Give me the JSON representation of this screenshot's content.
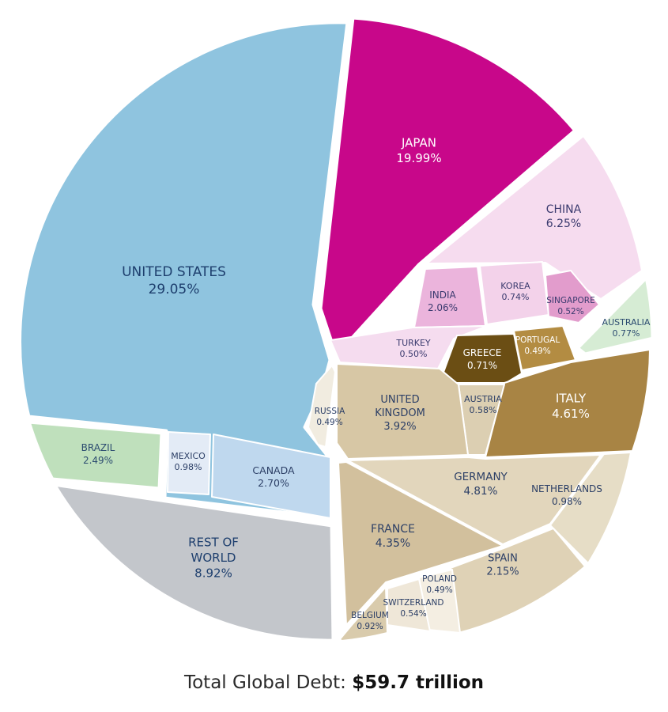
{
  "chart_data": {
    "type": "voronoi-treemap",
    "unit": "%",
    "footer": {
      "label": "Total Global Debt:",
      "value": "$59.7 trillion"
    },
    "cells": [
      {
        "name": "UNITED STATES",
        "value": "29.05%",
        "color": "#8fc4df",
        "label_color": "#1e3f6e"
      },
      {
        "name": "JAPAN",
        "value": "19.99%",
        "color": "#c8078a",
        "label_color": "#ffffff"
      },
      {
        "name": "CHINA",
        "value": "6.25%",
        "color": "#f6dcef",
        "label_color": "#3a3a6e"
      },
      {
        "name": "INDIA",
        "value": "2.06%",
        "color": "#ebb4dc",
        "label_color": "#3a3a6e"
      },
      {
        "name": "KOREA",
        "value": "0.74%",
        "color": "#f3d2ea",
        "label_color": "#3a3a6e"
      },
      {
        "name": "SINGAPORE",
        "value": "0.52%",
        "color": "#e29ccc",
        "label_color": "#3a3a6e"
      },
      {
        "name": "TURKEY",
        "value": "0.50%",
        "color": "#f5dcef",
        "label_color": "#3a3a6e"
      },
      {
        "name": "AUSTRALIA",
        "value": "0.77%",
        "color": "#d6ecd4",
        "label_color": "#2c4c70"
      },
      {
        "name": "GREECE",
        "value": "0.71%",
        "color": "#6b4e14",
        "label_color": "#ffffff"
      },
      {
        "name": "PORTUGAL",
        "value": "0.49%",
        "color": "#b38c42",
        "label_color": "#ffffff"
      },
      {
        "name": "ITALY",
        "value": "4.61%",
        "color": "#a88444",
        "label_color": "#ffffff"
      },
      {
        "name": "AUSTRIA",
        "value": "0.58%",
        "color": "#dccfb2",
        "label_color": "#2c3f66"
      },
      {
        "name": "RUSSIA",
        "value": "0.49%",
        "color": "#f1ece0",
        "label_color": "#2c3f66"
      },
      {
        "name": "UNITED KINGDOM",
        "value": "3.92%",
        "color": "#d7c7a5",
        "label_color": "#2c3f66"
      },
      {
        "name": "GERMANY",
        "value": "4.81%",
        "color": "#e2d6bc",
        "label_color": "#2c3f66"
      },
      {
        "name": "NETHERLANDS",
        "value": "0.98%",
        "color": "#e6ddc6",
        "label_color": "#2c3f66"
      },
      {
        "name": "FRANCE",
        "value": "4.35%",
        "color": "#d2c09d",
        "label_color": "#2c3f66"
      },
      {
        "name": "SPAIN",
        "value": "2.15%",
        "color": "#dfd2b6",
        "label_color": "#2c3f66"
      },
      {
        "name": "POLAND",
        "value": "0.49%",
        "color": "#f4eee2",
        "label_color": "#2c3f66"
      },
      {
        "name": "SWITZERLAND",
        "value": "0.54%",
        "color": "#efe7d8",
        "label_color": "#2c3f66"
      },
      {
        "name": "BELGIUM",
        "value": "0.92%",
        "color": "#d9cbac",
        "label_color": "#2c3f66"
      },
      {
        "name": "BRAZIL",
        "value": "2.49%",
        "color": "#bfe0bc",
        "label_color": "#2c4c70"
      },
      {
        "name": "MEXICO",
        "value": "0.98%",
        "color": "#e3ebf6",
        "label_color": "#2c3f66"
      },
      {
        "name": "CANADA",
        "value": "2.70%",
        "color": "#bfd8ee",
        "label_color": "#2c3f66"
      },
      {
        "name": "REST OF WORLD",
        "value": "8.92%",
        "color": "#c3c6cb",
        "label_color": "#1e3f6e"
      }
    ]
  }
}
